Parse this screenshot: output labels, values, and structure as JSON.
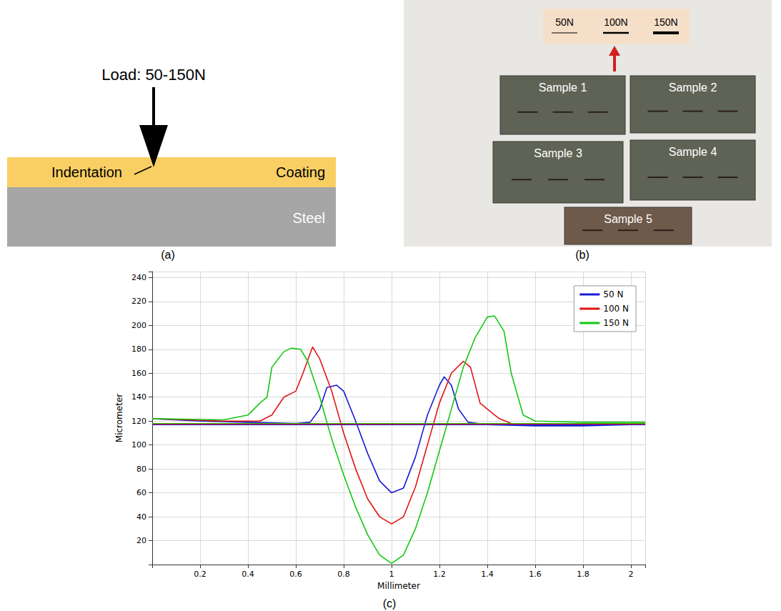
{
  "panel_labels": [
    "(a)",
    "(b)",
    "(c)"
  ],
  "diagram": {
    "load": "Load: 50-150N",
    "indentation": "Indentation",
    "coating": "Coating",
    "steel": "Steel"
  },
  "photo": {
    "loads": [
      "50N",
      "100N",
      "150N"
    ],
    "samples": [
      "Sample 1",
      "Sample 2",
      "Sample 3",
      "Sample 4",
      "Sample 5"
    ]
  },
  "chart_data": {
    "type": "line",
    "x_label": "Millimeter",
    "y_label": "Micrometer",
    "xlim": [
      0,
      2.06
    ],
    "ylim": [
      0,
      245
    ],
    "xticks": [
      0.2,
      0.4,
      0.6,
      0.8,
      1,
      1.2,
      1.4,
      1.6,
      1.8,
      2
    ],
    "yticks": [
      20,
      40,
      60,
      80,
      100,
      120,
      140,
      160,
      180,
      200,
      220,
      240
    ],
    "grid": true,
    "legend": "upper right",
    "series": [
      {
        "name": "50 N",
        "color": "#1a1ad6",
        "baseline": 117,
        "x": [
          0,
          0.2,
          0.4,
          0.6,
          0.66,
          0.7,
          0.73,
          0.77,
          0.8,
          0.85,
          0.9,
          0.95,
          1.0,
          1.05,
          1.1,
          1.15,
          1.2,
          1.22,
          1.25,
          1.28,
          1.32,
          1.4,
          1.6,
          1.8,
          2.0,
          2.06
        ],
        "values": [
          122,
          120,
          119,
          118,
          119,
          130,
          148,
          150,
          145,
          120,
          93,
          70,
          60,
          64,
          90,
          125,
          150,
          157,
          150,
          130,
          119,
          117,
          116,
          116,
          117,
          117
        ]
      },
      {
        "name": "100 N",
        "color": "#e01414",
        "baseline": 117.5,
        "x": [
          0,
          0.3,
          0.45,
          0.5,
          0.55,
          0.6,
          0.63,
          0.67,
          0.7,
          0.75,
          0.8,
          0.85,
          0.9,
          0.95,
          1.0,
          1.05,
          1.1,
          1.15,
          1.2,
          1.25,
          1.3,
          1.33,
          1.37,
          1.4,
          1.45,
          1.5,
          1.6,
          1.8,
          2.06
        ],
        "values": [
          122,
          120,
          120,
          125,
          140,
          145,
          160,
          182,
          172,
          145,
          110,
          80,
          55,
          40,
          34,
          40,
          65,
          100,
          135,
          160,
          170,
          165,
          135,
          130,
          122,
          118,
          117,
          117,
          118
        ]
      },
      {
        "name": "150 N",
        "color": "#14c814",
        "baseline": 118,
        "x": [
          0,
          0.3,
          0.4,
          0.45,
          0.48,
          0.5,
          0.55,
          0.58,
          0.62,
          0.65,
          0.7,
          0.75,
          0.8,
          0.85,
          0.9,
          0.95,
          1.0,
          1.05,
          1.1,
          1.15,
          1.2,
          1.25,
          1.3,
          1.35,
          1.4,
          1.43,
          1.47,
          1.5,
          1.55,
          1.6,
          1.8,
          2.06
        ],
        "values": [
          122,
          121,
          125,
          135,
          140,
          165,
          178,
          181,
          180,
          170,
          140,
          105,
          75,
          48,
          25,
          8,
          1,
          8,
          30,
          60,
          95,
          130,
          165,
          190,
          207,
          208,
          195,
          160,
          125,
          120,
          119,
          119
        ]
      }
    ]
  }
}
